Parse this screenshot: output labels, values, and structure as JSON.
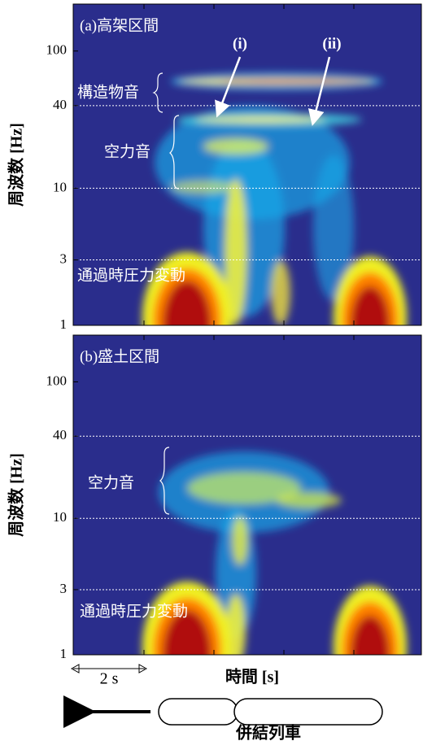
{
  "chart_data": [
    {
      "type": "spectrogram",
      "title": "(a)高架区間",
      "ylabel": "周波数 [Hz]",
      "log_y": true,
      "ylim": [
        1,
        220
      ],
      "yticks": [
        1,
        3,
        10,
        40,
        100
      ],
      "grid": [
        3,
        10,
        40
      ],
      "annotations": [
        "構造物音",
        "空力音",
        "通過時圧力変動",
        "(i)",
        "(ii)"
      ],
      "background": "#2a2d8c"
    },
    {
      "type": "spectrogram",
      "title": "(b)盛土区間",
      "ylabel": "周波数 [Hz]",
      "log_y": true,
      "ylim": [
        1,
        220
      ],
      "yticks": [
        1,
        3,
        10,
        40,
        100
      ],
      "grid": [
        3,
        10,
        40
      ],
      "annotations": [
        "空力音",
        "通過時圧力変動"
      ],
      "background": "#2a2d8c"
    }
  ],
  "xlabel": "時間 [s]",
  "scale_bar": "2 s",
  "train_label": "併結列車"
}
